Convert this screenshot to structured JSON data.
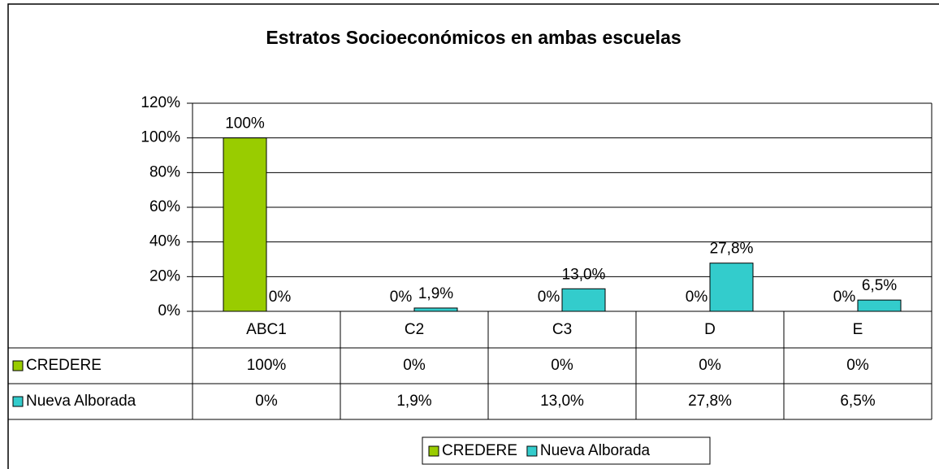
{
  "chart_data": {
    "type": "bar",
    "title": "Estratos Socioeconómicos en ambas escuelas",
    "categories": [
      "ABC1",
      "C2",
      "C3",
      "D",
      "E"
    ],
    "series": [
      {
        "name": "CREDERE",
        "color": "#99cc00",
        "values": [
          100,
          0,
          0,
          0,
          0
        ],
        "value_labels": [
          "100%",
          "0%",
          "0%",
          "0%",
          "0%"
        ]
      },
      {
        "name": "Nueva Alborada",
        "color": "#33cccc",
        "values": [
          0,
          1.9,
          13.0,
          27.8,
          6.5
        ],
        "value_labels": [
          "0%",
          "1,9%",
          "13,0%",
          "27,8%",
          "6,5%"
        ]
      }
    ],
    "ylim": [
      0,
      120
    ],
    "yticks": [
      {
        "value": 0,
        "label": "0%"
      },
      {
        "value": 20,
        "label": "20%"
      },
      {
        "value": 40,
        "label": "40%"
      },
      {
        "value": 60,
        "label": "60%"
      },
      {
        "value": 80,
        "label": "80%"
      },
      {
        "value": 100,
        "label": "100%"
      },
      {
        "value": 120,
        "label": "120%"
      }
    ],
    "grid": true,
    "data_table": true,
    "legend": "bottom"
  }
}
